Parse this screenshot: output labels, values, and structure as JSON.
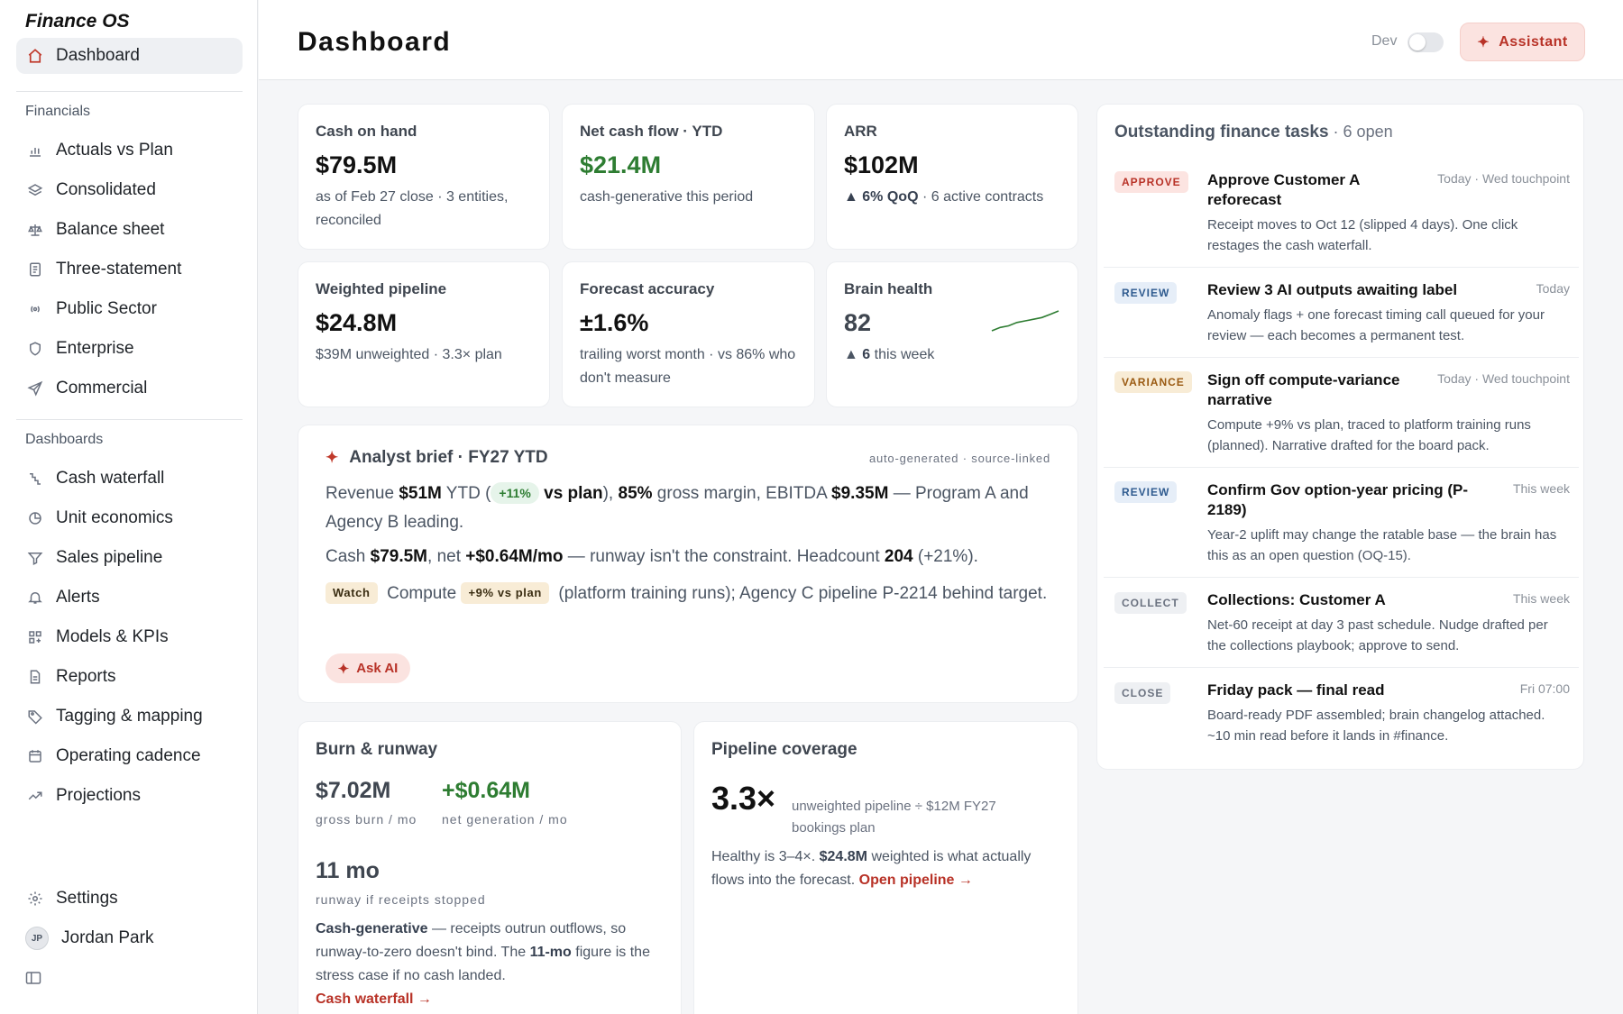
{
  "app": {
    "name": "Finance OS"
  },
  "sidebar": {
    "top_item": {
      "label": "Dashboard",
      "icon": "home-icon"
    },
    "financials_label": "Financials",
    "financials": [
      {
        "label": "Actuals vs Plan",
        "icon": "bar-chart-icon"
      },
      {
        "label": "Consolidated",
        "icon": "layers-icon"
      },
      {
        "label": "Balance sheet",
        "icon": "scale-icon"
      },
      {
        "label": "Three-statement",
        "icon": "document-icon"
      },
      {
        "label": "Public Sector",
        "icon": "broadcast-icon"
      },
      {
        "label": "Enterprise",
        "icon": "shield-icon"
      },
      {
        "label": "Commercial",
        "icon": "send-icon"
      }
    ],
    "dashboards_label": "Dashboards",
    "dashboards": [
      {
        "label": "Cash waterfall",
        "icon": "waterfall-icon"
      },
      {
        "label": "Unit economics",
        "icon": "pie-icon"
      },
      {
        "label": "Sales pipeline",
        "icon": "filter-icon"
      },
      {
        "label": "Alerts",
        "icon": "bell-icon"
      },
      {
        "label": "Models & KPIs",
        "icon": "grid-icon"
      },
      {
        "label": "Reports",
        "icon": "report-icon"
      },
      {
        "label": "Tagging & mapping",
        "icon": "tag-icon"
      },
      {
        "label": "Operating cadence",
        "icon": "calendar-icon"
      },
      {
        "label": "Projections",
        "icon": "trend-icon"
      }
    ],
    "settings_label": "Settings",
    "user": {
      "initials": "JP",
      "name": "Jordan Park"
    }
  },
  "header": {
    "title": "Dashboard",
    "dev_label": "Dev",
    "dev_enabled": false,
    "assistant_label": "Assistant"
  },
  "kpis": {
    "cash": {
      "title": "Cash on hand",
      "value": "$79.5M",
      "sub": "as of Feb 27 close · 3 entities, reconciled"
    },
    "netflow": {
      "title": "Net cash flow · YTD",
      "value": "$21.4M",
      "sub": "cash-generative this period"
    },
    "arr": {
      "title": "ARR",
      "value": "$102M",
      "delta": "▲ 6% QoQ",
      "sub": " · 6 active contracts"
    },
    "pipeline": {
      "title": "Weighted pipeline",
      "value": "$24.8M",
      "sub": "$39M unweighted · 3.3× plan"
    },
    "accuracy": {
      "title": "Forecast accuracy",
      "value": "±1.6%",
      "sub": "trailing worst month · vs 86% who don't measure"
    },
    "brain": {
      "title": "Brain health",
      "value": "82",
      "delta_prefix": "▲",
      "delta_num": "6",
      "delta_suffix": " this week",
      "spark": [
        70,
        72,
        73,
        75,
        76,
        77,
        78,
        80,
        82
      ]
    }
  },
  "brief": {
    "title": "Analyst brief · FY27 YTD",
    "meta": "auto-generated · source-linked",
    "l1_a": "Revenue ",
    "l1_rev": "$51M",
    "l1_b": " YTD (",
    "l1_chip": "+11%",
    "l1_vs": " vs plan",
    "l1_c": "), ",
    "l1_gm": "85%",
    "l1_d": " gross margin, EBITDA ",
    "l1_ebitda": "$9.35M",
    "l1_e": " — Program A and Agency B leading.",
    "l2_a": "Cash ",
    "l2_cash": "$79.5M",
    "l2_b": ", net ",
    "l2_net": "+$0.64M/mo",
    "l2_c": " — runway isn't the constraint. Headcount ",
    "l2_hc": "204",
    "l2_d": " (+21%).",
    "l3_watch": "Watch",
    "l3_a": "Compute ",
    "l3_chip": "+9% vs plan",
    "l3_b": " (platform training runs); Agency C pipeline P-2214 behind target.",
    "ask_label": "Ask AI"
  },
  "burn": {
    "title": "Burn & runway",
    "gross": "$7.02M",
    "gross_label": "gross burn / mo",
    "net": "+$0.64M",
    "net_label": "net generation / mo",
    "runway": "11 mo",
    "runway_label": "runway if receipts stopped",
    "p_bold": "Cash-generative",
    "p_a": " — receipts outrun outflows, so runway-to-zero doesn't bind. The ",
    "p_bold2": "11-mo",
    "p_b": " figure is the stress case if no cash landed.",
    "link": "Cash waterfall →"
  },
  "coverage": {
    "title": "Pipeline coverage",
    "value": "3.3×",
    "desc": "unweighted pipeline ÷ $12M FY27 bookings plan",
    "p_a": "Healthy is 3–4×. ",
    "p_bold": "$24.8M",
    "p_b": " weighted is what actually flows into the forecast. ",
    "link": "Open pipeline →"
  },
  "tasks": {
    "title": "Outstanding finance tasks",
    "count": " · 6 open",
    "items": [
      {
        "badge": "APPROVE",
        "title": "Approve Customer A reforecast",
        "when": "Today · Wed touchpoint",
        "body": "Receipt moves to Oct 12 (slipped 4 days). One click restages the cash waterfall."
      },
      {
        "badge": "REVIEW",
        "title": "Review 3 AI outputs awaiting label",
        "when": "Today",
        "body": "Anomaly flags + one forecast timing call queued for your review — each becomes a permanent test."
      },
      {
        "badge": "VARIANCE",
        "title": "Sign off compute-variance narrative",
        "when": "Today · Wed touchpoint",
        "body": "Compute +9% vs plan, traced to platform training runs (planned). Narrative drafted for the board pack."
      },
      {
        "badge": "REVIEW",
        "title": "Confirm Gov option-year pricing (P-2189)",
        "when": "This week",
        "body": "Year-2 uplift may change the ratable base — the brain has this as an open question (OQ-15)."
      },
      {
        "badge": "COLLECT",
        "title": "Collections: Customer A",
        "when": "This week",
        "body": "Net-60 receipt at day 3 past schedule. Nudge drafted per the collections playbook; approve to send."
      },
      {
        "badge": "CLOSE",
        "title": "Friday pack — final read",
        "when": "Fri 07:00",
        "body": "Board-ready PDF assembled; brain changelog attached. ~10 min read before it lands in #finance."
      }
    ]
  }
}
